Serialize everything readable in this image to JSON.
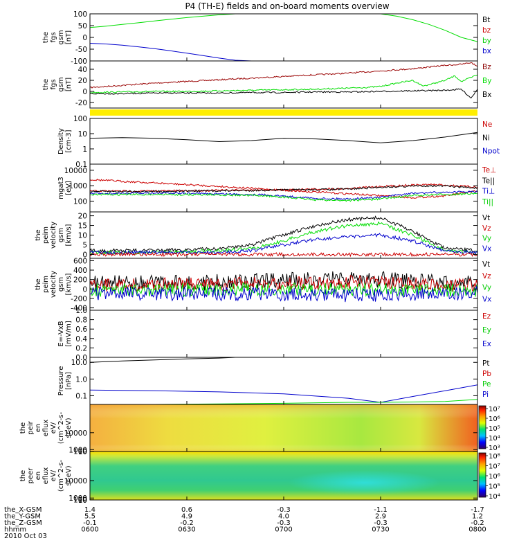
{
  "title": "P4 (TH-E) fields and on-board moments overview",
  "chart_data": [
    {
      "type": "line",
      "panel": "fgs_gsm",
      "ylabel": [
        "the",
        "fgs",
        "gsm",
        "[nT]"
      ],
      "yticks": [
        100,
        50,
        0,
        -50,
        -100
      ],
      "ylim": [
        -100,
        100
      ],
      "legend": [
        "Bt",
        "bz",
        "by",
        "bx"
      ],
      "legend_colors": [
        "#000000",
        "#cc0000",
        "#00cc00",
        "#0000cc"
      ],
      "series": [
        {
          "color": "#00dd00",
          "x": [
            0,
            5,
            10,
            15,
            20,
            25,
            30,
            35,
            40,
            45,
            50,
            55,
            60,
            65,
            70,
            75,
            80,
            85,
            90,
            95,
            100,
            105,
            110,
            115,
            120
          ],
          "y": [
            42,
            48,
            55,
            62,
            70,
            77,
            84,
            90,
            96,
            101,
            null,
            null,
            null,
            null,
            null,
            null,
            null,
            null,
            100,
            90,
            75,
            55,
            30,
            0,
            -18
          ]
        },
        {
          "color": "#0000cc",
          "x": [
            0,
            5,
            10,
            15,
            20,
            25,
            30,
            35,
            40,
            45,
            50,
            55
          ],
          "y": [
            -25,
            -28,
            -33,
            -40,
            -48,
            -57,
            -67,
            -77,
            -88,
            -97,
            -102,
            null
          ]
        }
      ]
    },
    {
      "type": "line",
      "panel": "fgs_gse",
      "ylabel": [
        "the",
        "fgs",
        "gsm",
        "[nT]"
      ],
      "yticks": [
        40,
        20,
        0,
        -20
      ],
      "ylim": [
        -30,
        55
      ],
      "legend": [
        "Bz",
        "By",
        "Bx"
      ],
      "legend_colors": [
        "#8b0000",
        "#00dd00",
        "#000000"
      ],
      "series": [
        {
          "color": "#990000",
          "x": [
            0,
            10,
            20,
            30,
            40,
            50,
            60,
            70,
            80,
            90,
            100,
            105,
            110,
            115,
            118,
            120
          ],
          "y": [
            7,
            11,
            15,
            18,
            21,
            24,
            27,
            30,
            33,
            37,
            41,
            44,
            47,
            49,
            52,
            45
          ]
        },
        {
          "color": "#00dd00",
          "x": [
            0,
            10,
            20,
            30,
            40,
            50,
            60,
            70,
            80,
            85,
            90,
            95,
            100,
            103,
            105,
            110,
            113,
            115,
            118,
            120
          ],
          "y": [
            -2,
            -1,
            0,
            0,
            1,
            2,
            3,
            4,
            6,
            7,
            9,
            15,
            20,
            10,
            12,
            20,
            28,
            18,
            25,
            30
          ]
        },
        {
          "color": "#000000",
          "x": [
            0,
            10,
            20,
            30,
            40,
            50,
            60,
            70,
            80,
            90,
            100,
            110,
            115,
            118,
            120
          ],
          "y": [
            -4,
            -4,
            -3,
            -3,
            -3,
            -2,
            -2,
            -1,
            -1,
            0,
            1,
            2,
            4,
            -12,
            4
          ]
        }
      ]
    },
    {
      "type": "line",
      "panel": "density",
      "ylabel": [
        "Density",
        "[cm-3]"
      ],
      "ytick_labels": [
        "100",
        "10",
        "1",
        "0.1"
      ],
      "ytick_values": [
        100,
        10,
        1,
        0.1
      ],
      "ylim": [
        0.1,
        100
      ],
      "log": true,
      "legend": [
        "Ne",
        "Ni",
        "Npot"
      ],
      "legend_colors": [
        "#cc0000",
        "#000000",
        "#0000cc"
      ],
      "series": [
        {
          "color": "#000000",
          "x": [
            0,
            10,
            20,
            30,
            40,
            50,
            60,
            70,
            80,
            90,
            100,
            110,
            120
          ],
          "y": [
            5,
            5.5,
            5,
            4,
            3,
            3.5,
            5,
            4.5,
            3.5,
            2.5,
            3.5,
            6,
            12
          ]
        }
      ]
    },
    {
      "type": "line",
      "panel": "temperature",
      "ylabel": [
        "mgat3",
        "[eV]"
      ],
      "ytick_labels": [
        "10000",
        "1000",
        "100"
      ],
      "ytick_values": [
        10000,
        1000,
        100
      ],
      "ylim": [
        20,
        25000
      ],
      "log": true,
      "legend": [
        "Te⊥",
        "Te||",
        "Ti⊥",
        "Ti||"
      ],
      "legend_colors": [
        "#cc0000",
        "#000000",
        "#0000cc",
        "#00cc00"
      ],
      "series": [
        {
          "color": "#cc0000",
          "x": [
            0,
            20,
            40,
            60,
            80,
            100,
            110,
            120
          ],
          "y": [
            2500,
            1500,
            900,
            500,
            300,
            170,
            220,
            450
          ]
        },
        {
          "color": "#cc0000",
          "x": [
            0,
            20,
            40,
            60,
            80,
            90,
            100,
            105,
            110,
            120
          ],
          "y": [
            450,
            450,
            500,
            550,
            650,
            900,
            1100,
            1200,
            1100,
            800
          ]
        },
        {
          "color": "#000000",
          "x": [
            0,
            20,
            40,
            60,
            80,
            90,
            100,
            105,
            110,
            120
          ],
          "y": [
            420,
            430,
            470,
            520,
            600,
            800,
            950,
            1000,
            950,
            700
          ]
        },
        {
          "color": "#0000cc",
          "x": [
            0,
            20,
            40,
            55,
            70,
            80,
            90,
            100,
            110,
            120
          ],
          "y": [
            300,
            330,
            300,
            250,
            150,
            140,
            180,
            320,
            380,
            400
          ]
        },
        {
          "color": "#00dd00",
          "x": [
            0,
            20,
            40,
            55,
            70,
            80,
            90,
            100,
            110,
            120
          ],
          "y": [
            260,
            270,
            260,
            220,
            120,
            110,
            140,
            230,
            270,
            300
          ]
        }
      ]
    },
    {
      "type": "line",
      "panel": "velocity_gsm",
      "ylabel": [
        "the",
        "peim",
        "velocity",
        "gsm",
        "[km/s]"
      ],
      "yticks": [
        20,
        15,
        10,
        5,
        0
      ],
      "ylim": [
        -2,
        22
      ],
      "legend": [
        "Vt",
        "Vz",
        "Vy",
        "Vx"
      ],
      "legend_colors": [
        "#000000",
        "#cc0000",
        "#00cc00",
        "#0000cc"
      ],
      "series": [
        {
          "color": "#000000",
          "x": [
            0,
            20,
            40,
            50,
            60,
            70,
            80,
            90,
            100,
            110,
            120
          ],
          "y": [
            2,
            2,
            3,
            5,
            10,
            15,
            18,
            19,
            12,
            3,
            2
          ]
        },
        {
          "color": "#00dd00",
          "x": [
            0,
            20,
            40,
            50,
            60,
            70,
            80,
            90,
            100,
            110,
            120
          ],
          "y": [
            1,
            1,
            2,
            3,
            7,
            12,
            15,
            16,
            10,
            2,
            1
          ]
        },
        {
          "color": "#0000cc",
          "x": [
            0,
            20,
            40,
            50,
            60,
            70,
            80,
            90,
            100,
            110,
            120
          ],
          "y": [
            1,
            1,
            1,
            2,
            5,
            8,
            9,
            10,
            7,
            2,
            1
          ]
        },
        {
          "color": "#cc0000",
          "x": [
            0,
            20,
            40,
            60,
            80,
            100,
            120
          ],
          "y": [
            0,
            0,
            0,
            0,
            0,
            0,
            0
          ]
        }
      ]
    },
    {
      "type": "line",
      "panel": "velocity_gse",
      "ylabel": [
        "the",
        "peim",
        "velocity",
        "gsm",
        "[km/s]"
      ],
      "yticks": [
        600,
        400,
        200,
        0,
        -200,
        -400
      ],
      "ylim": [
        -450,
        650
      ],
      "legend": [
        "Vt",
        "Vz",
        "Vy",
        "Vx"
      ],
      "legend_colors": [
        "#000000",
        "#cc0000",
        "#00cc00",
        "#0000cc"
      ],
      "series": [
        {
          "color": "#000000",
          "x": [
            0,
            20,
            40,
            60,
            80,
            90,
            100,
            120
          ],
          "y": [
            120,
            130,
            140,
            170,
            220,
            200,
            150,
            100
          ]
        },
        {
          "color": "#cc0000",
          "x": [
            0,
            20,
            40,
            60,
            80,
            90,
            100,
            120
          ],
          "y": [
            80,
            90,
            100,
            120,
            140,
            130,
            110,
            70
          ]
        },
        {
          "color": "#00dd00",
          "x": [
            0,
            20,
            40,
            60,
            80,
            90,
            100,
            120
          ],
          "y": [
            -20,
            -20,
            -10,
            0,
            0,
            -10,
            -10,
            -20
          ]
        },
        {
          "color": "#0000cc",
          "x": [
            0,
            20,
            40,
            60,
            80,
            90,
            100,
            120
          ],
          "y": [
            -100,
            -100,
            -110,
            -120,
            -130,
            -120,
            -110,
            -90
          ]
        }
      ]
    },
    {
      "type": "line",
      "panel": "efield",
      "ylabel": [
        "E=-VxB",
        "[mV/m]"
      ],
      "yticks": [
        1.0,
        0.8,
        0.6,
        0.4,
        0.2,
        0.0
      ],
      "ylim": [
        0,
        1
      ],
      "legend": [
        "Ez",
        "Ey",
        "Ex"
      ],
      "legend_colors": [
        "#cc0000",
        "#00cc00",
        "#0000cc"
      ],
      "series": []
    },
    {
      "type": "line",
      "panel": "pressure",
      "ylabel": [
        "Pressure",
        "[nPa]"
      ],
      "ytick_labels": [
        "10.0",
        "1.0",
        "0.1"
      ],
      "ytick_values": [
        10,
        1,
        0.1
      ],
      "ylim": [
        0.03,
        20
      ],
      "log": true,
      "legend": [
        "Pt",
        "Pb",
        "Pe",
        "Pi"
      ],
      "legend_colors": [
        "#000000",
        "#cc0000",
        "#00cc00",
        "#0000cc"
      ],
      "series": [
        {
          "color": "#000000",
          "x": [
            0,
            10,
            20,
            30,
            40,
            45
          ],
          "y": [
            10,
            12,
            14,
            16,
            18,
            20
          ]
        },
        {
          "color": "#0000cc",
          "x": [
            0,
            20,
            40,
            60,
            80,
            90,
            100,
            110,
            120
          ],
          "y": [
            0.22,
            0.2,
            0.17,
            0.13,
            0.07,
            0.04,
            0.09,
            0.2,
            0.45
          ]
        },
        {
          "color": "#00dd00",
          "x": [
            0,
            20,
            40,
            60,
            80,
            90,
            100,
            110,
            120
          ],
          "y": [
            0.03,
            0.03,
            0.032,
            0.035,
            0.04,
            0.04,
            0.042,
            0.045,
            0.06
          ]
        }
      ]
    },
    {
      "type": "heatmap",
      "panel": "ion_spectrogram",
      "ylabel": [
        "the",
        "peir",
        "en",
        "eflux",
        "eV/",
        "(cm^2-s-",
        "sr-eV)"
      ],
      "ytick_labels": [
        "10000",
        "1000",
        "100",
        "10"
      ],
      "ytick_values": [
        10000,
        1000,
        100,
        10
      ],
      "ylim": [
        7,
        25000
      ],
      "colorbar_labels": [
        "10⁷",
        "10⁶",
        "10⁵",
        "10⁴",
        "10³"
      ],
      "colorbar_range": [
        1000,
        10000000
      ]
    },
    {
      "type": "heatmap",
      "panel": "electron_spectrogram",
      "ylabel": [
        "the",
        "peer",
        "en",
        "eflux",
        "eV/",
        "(cm^2-s-",
        "sr-eV)"
      ],
      "ytick_labels": [
        "10000",
        "1000",
        "100",
        "10"
      ],
      "ytick_values": [
        10000,
        1000,
        100,
        10
      ],
      "ylim": [
        7,
        25000
      ],
      "colorbar_labels": [
        "10⁸",
        "10⁷",
        "10⁶",
        "10⁵",
        "10⁴"
      ],
      "colorbar_range": [
        10000,
        100000000
      ]
    }
  ],
  "xaxis": {
    "row_labels": [
      "the_X-GSM",
      "the_Y-GSM",
      "the_Z-GSM",
      "hhmm",
      "2010 Oct 03"
    ],
    "ticks": [
      {
        "x": 0,
        "vals": [
          "1.4",
          "5.5",
          "-0.1",
          "0600"
        ]
      },
      {
        "x": 30,
        "vals": [
          "0.6",
          "4.9",
          "-0.2",
          "0630"
        ]
      },
      {
        "x": 60,
        "vals": [
          "-0.3",
          "4.0",
          "-0.3",
          "0700"
        ]
      },
      {
        "x": 90,
        "vals": [
          "-1.1",
          "2.9",
          "-0.3",
          "0730"
        ]
      },
      {
        "x": 120,
        "vals": [
          "-1.7",
          "1.2",
          "-0.2",
          "0800"
        ]
      }
    ],
    "range": [
      0,
      120
    ]
  },
  "colors": {
    "yellow_bar": "#ffee00"
  }
}
